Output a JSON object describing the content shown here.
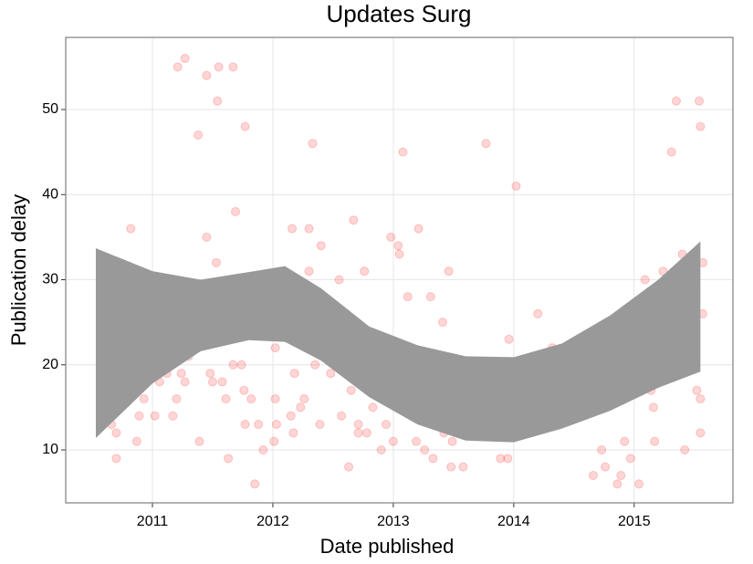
{
  "chart_data": {
    "type": "scatter",
    "title": "Updates Surg",
    "x_label": "Date published",
    "y_label": "Publication delay",
    "xlim": [
      2010.28,
      2015.82
    ],
    "ylim": [
      3.78,
      58.47
    ],
    "xticks": [
      2011,
      2012,
      2013,
      2014,
      2015
    ],
    "yticks": [
      10,
      20,
      30,
      40,
      50
    ],
    "grid": true,
    "color": "#ff0000",
    "x": [
      2010.59,
      2010.61,
      2010.66,
      2010.7,
      2010.7,
      2010.7,
      2010.82,
      2010.83,
      2010.87,
      2010.89,
      2010.93,
      2010.95,
      2010.98,
      2011.02,
      2011.04,
      2011.06,
      2011.08,
      2011.1,
      2011.12,
      2011.12,
      2011.17,
      2011.17,
      2011.2,
      2011.21,
      2011.23,
      2011.24,
      2011.27,
      2011.27,
      2011.3,
      2011.33,
      2011.36,
      2011.36,
      2011.38,
      2011.39,
      2011.41,
      2011.45,
      2011.45,
      2011.48,
      2011.5,
      2011.53,
      2011.54,
      2011.55,
      2011.56,
      2011.58,
      2011.61,
      2011.63,
      2011.67,
      2011.67,
      2011.69,
      2011.73,
      2011.74,
      2011.76,
      2011.77,
      2011.77,
      2011.82,
      2011.85,
      2011.88,
      2011.92,
      2011.92,
      2012.01,
      2012.02,
      2012.03,
      2012.02,
      2012.16,
      2012.15,
      2012.17,
      2012.18,
      2012.23,
      2012.26,
      2012.27,
      2012.3,
      2012.3,
      2012.33,
      2012.35,
      2012.39,
      2012.4,
      2012.48,
      2012.52,
      2012.55,
      2012.57,
      2012.59,
      2012.61,
      2012.63,
      2012.65,
      2012.67,
      2012.71,
      2012.71,
      2012.76,
      2012.78,
      2012.83,
      2012.88,
      2012.9,
      2012.94,
      2012.98,
      2013.0,
      2013.04,
      2013.05,
      2013.05,
      2013.08,
      2013.12,
      2013.14,
      2013.19,
      2013.21,
      2013.23,
      2013.26,
      2013.31,
      2013.33,
      2013.37,
      2013.41,
      2013.42,
      2013.46,
      2013.48,
      2013.49,
      2013.55,
      2013.58,
      2013.61,
      2013.65,
      2013.71,
      2013.73,
      2013.77,
      2013.8,
      2013.87,
      2013.89,
      2013.94,
      2013.95,
      2013.96,
      2014.0,
      2014.02,
      2014.04,
      2014.1,
      2014.2,
      2014.22,
      2014.3,
      2014.32,
      2014.39,
      2014.48,
      2014.58,
      2014.66,
      2014.73,
      2014.76,
      2014.8,
      2014.86,
      2014.89,
      2014.92,
      2014.97,
      2015.04,
      2015.09,
      2015.14,
      2015.16,
      2015.17,
      2015.2,
      2015.23,
      2015.24,
      2015.3,
      2015.31,
      2015.31,
      2015.31,
      2015.35,
      2015.4,
      2015.42,
      2015.48,
      2015.49,
      2015.51,
      2015.52,
      2015.54,
      2015.55,
      2015.55,
      2015.55,
      2015.57,
      2015.57
    ],
    "values": [
      14,
      21,
      13,
      15,
      9,
      12,
      36,
      23,
      11,
      14,
      16,
      19,
      21,
      14,
      21,
      18,
      24,
      20,
      26,
      19,
      30,
      14,
      16,
      55,
      23,
      19,
      56,
      18,
      21,
      26,
      28,
      29,
      47,
      11,
      24,
      54,
      35,
      19,
      18,
      32,
      51,
      55,
      28,
      18,
      16,
      9,
      20,
      55,
      38,
      25,
      20,
      17,
      48,
      13,
      16,
      6,
      13,
      25,
      10,
      11,
      16,
      13,
      22,
      36,
      14,
      12,
      19,
      15,
      16,
      27,
      31,
      36,
      46,
      20,
      13,
      34,
      19,
      26,
      30,
      14,
      24,
      26,
      8,
      17,
      37,
      13,
      12,
      31,
      12,
      15,
      22,
      10,
      13,
      35,
      11,
      34,
      33,
      15,
      45,
      28,
      20,
      11,
      36,
      16,
      10,
      28,
      9,
      17,
      25,
      12,
      31,
      8,
      11,
      12,
      8,
      19,
      15,
      17,
      14,
      46,
      14,
      16,
      9,
      15,
      9,
      23,
      18,
      41,
      12,
      17,
      26,
      15,
      17,
      22,
      16,
      17,
      23,
      7,
      10,
      8,
      16,
      6,
      7,
      11,
      9,
      6,
      30,
      17,
      15,
      11,
      19,
      25,
      31,
      22,
      28,
      25,
      45,
      51,
      33,
      10,
      20,
      27,
      28,
      17,
      51,
      48,
      12,
      16,
      32,
      26
    ],
    "band": {
      "color": "#999999",
      "x": [
        2010.53,
        2011.0,
        2011.4,
        2011.8,
        2012.1,
        2012.4,
        2012.8,
        2013.2,
        2013.6,
        2014.0,
        2014.4,
        2014.8,
        2015.2,
        2015.55
      ],
      "upper": [
        33.7,
        31.0,
        30.0,
        30.9,
        31.6,
        29.0,
        24.5,
        22.3,
        21.0,
        20.9,
        22.5,
        25.8,
        30.0,
        34.5
      ],
      "lower": [
        11.4,
        17.8,
        21.6,
        22.9,
        22.7,
        20.5,
        16.2,
        13.0,
        11.1,
        10.9,
        12.5,
        14.6,
        17.3,
        19.2
      ]
    }
  }
}
